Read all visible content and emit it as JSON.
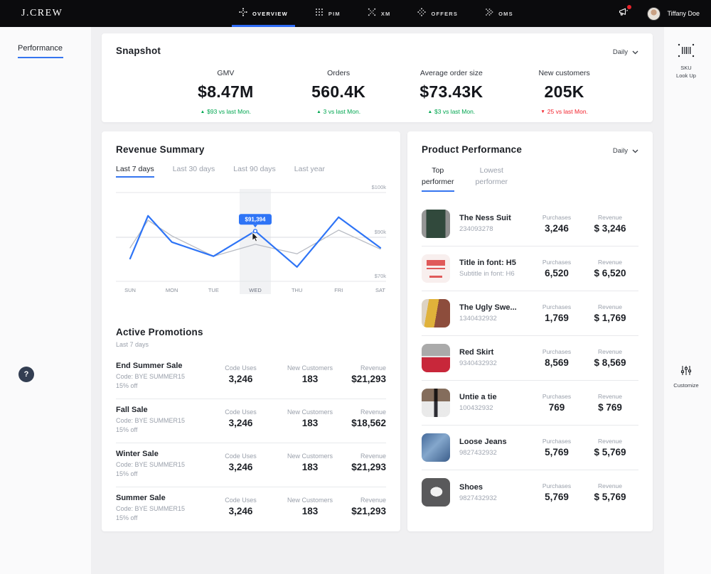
{
  "colors": {
    "accent": "#2e74f6",
    "positive": "#00a650",
    "negative": "#f2242e",
    "nav_bg": "#0b0b0d",
    "page_bg": "#f0f0f2",
    "line_previous": "#b9bcc4"
  },
  "icons": {
    "trend_up": "▲",
    "trend_down": "▼",
    "help": "?"
  },
  "nav": {
    "logo": "J.CREW",
    "items": [
      {
        "label": "OVERVIEW",
        "icon": "overview-icon",
        "active": true
      },
      {
        "label": "PIM",
        "icon": "grid-icon",
        "active": false
      },
      {
        "label": "XM",
        "icon": "x-icon",
        "active": false
      },
      {
        "label": "OFFERS",
        "icon": "diamond-icon",
        "active": false
      },
      {
        "label": "OMS",
        "icon": "chevrons-icon",
        "active": false
      }
    ],
    "user_name": "Tiffany Doe"
  },
  "left_rail": {
    "active_item": "Performance"
  },
  "right_rail": {
    "sku_lookup": {
      "line1": "SKU",
      "line2": "Look Up"
    },
    "customize": {
      "label": "Customize"
    }
  },
  "snapshot": {
    "title": "Snapshot",
    "period_selector": "Daily",
    "metrics": [
      {
        "label": "GMV",
        "value": "$8.47M",
        "delta": "$93 vs last Mon.",
        "direction": "up"
      },
      {
        "label": "Orders",
        "value": "560.4K",
        "delta": "3 vs last Mon.",
        "direction": "up"
      },
      {
        "label": "Average order size",
        "value": "$73.43K",
        "delta": "$3 vs last Mon.",
        "direction": "up"
      },
      {
        "label": "New customers",
        "value": "205K",
        "delta": "25 vs last Mon.",
        "direction": "down"
      }
    ]
  },
  "revenue_summary": {
    "title": "Revenue Summary",
    "tabs": [
      {
        "label": "Last 7 days",
        "active": true
      },
      {
        "label": "Last 30 days",
        "active": false
      },
      {
        "label": "Last 90 days",
        "active": false
      },
      {
        "label": "Last year",
        "active": false
      }
    ]
  },
  "chart_data": {
    "type": "line",
    "title": "Revenue Summary - Last 7 days",
    "x_labels": [
      "SUN",
      "MON",
      "TUE",
      "WED",
      "THU",
      "FRI",
      "SAT"
    ],
    "y_gridlines": [
      {
        "label": "$100k",
        "value": 100000
      },
      {
        "label": "$90k",
        "value": 90000
      },
      {
        "label": "$70k",
        "value": 70000
      }
    ],
    "ylim": [
      70000,
      100000
    ],
    "grid": true,
    "legend": "none",
    "series": [
      {
        "name": "current period",
        "color": "#2e74f6",
        "stroke_width": 2.2,
        "x": [
          0,
          0.43,
          1,
          2,
          3,
          4,
          5,
          6
        ],
        "values": [
          80300,
          94800,
          87800,
          81400,
          91394,
          76500,
          94500,
          85200
        ]
      },
      {
        "name": "previous period",
        "color": "#b9bcc4",
        "stroke_width": 1.3,
        "x": [
          0,
          0.43,
          1,
          2,
          3,
          4,
          5,
          6
        ],
        "values": [
          85200,
          93800,
          90300,
          81400,
          86800,
          82500,
          91600,
          84600
        ]
      }
    ],
    "highlight": {
      "x_label": "WED",
      "tooltip": "$91,394",
      "tooltip_value": 91394
    }
  },
  "promotions": {
    "title": "Active Promotions",
    "subtitle": "Last 7 days",
    "col_headers": {
      "uses": "Code Uses",
      "customers": "New Customers",
      "revenue": "Revenue"
    },
    "rows": [
      {
        "name": "End Summer Sale",
        "code": "Code: BYE SUMMER15",
        "discount": "15% off",
        "uses": "3,246",
        "customers": "183",
        "revenue": "$21,293"
      },
      {
        "name": "Fall Sale",
        "code": "Code: BYE SUMMER15",
        "discount": "15% off",
        "uses": "3,246",
        "customers": "183",
        "revenue": "$18,562"
      },
      {
        "name": "Winter Sale",
        "code": "Code: BYE SUMMER15",
        "discount": "15% off",
        "uses": "3,246",
        "customers": "183",
        "revenue": "$21,293"
      },
      {
        "name": "Summer Sale",
        "code": "Code: BYE SUMMER15",
        "discount": "15% off",
        "uses": "3,246",
        "customers": "183",
        "revenue": "$21,293"
      }
    ]
  },
  "product_performance": {
    "title": "Product Performance",
    "period_selector": "Daily",
    "tabs": [
      {
        "line1": "Top",
        "line2": "performer",
        "active": true
      },
      {
        "line1": "Lowest",
        "line2": "performer",
        "active": false
      }
    ],
    "col_headers": {
      "purchases": "Purchases",
      "revenue": "Revenue"
    },
    "rows": [
      {
        "name": "The Ness Suit",
        "sku": "234093278",
        "purchases": "3,246",
        "revenue": "$ 3,246",
        "thumb": "suit"
      },
      {
        "name": "Title in font: H5",
        "sku": "Subtitle in font: H6",
        "purchases": "6,520",
        "revenue": "$ 6,520",
        "thumb": "placeholder"
      },
      {
        "name": "The Ugly Swe...",
        "sku": "1340432932",
        "purchases": "1,769",
        "revenue": "$ 1,769",
        "thumb": "sweater"
      },
      {
        "name": "Red Skirt",
        "sku": "9340432932",
        "purchases": "8,569",
        "revenue": "$ 8,569",
        "thumb": "skirt"
      },
      {
        "name": "Untie a tie",
        "sku": "100432932",
        "purchases": "769",
        "revenue": "$ 769",
        "thumb": "tie"
      },
      {
        "name": "Loose Jeans",
        "sku": "9827432932",
        "purchases": "5,769",
        "revenue": "$ 5,769",
        "thumb": "jeans"
      },
      {
        "name": "Shoes",
        "sku": "9827432932",
        "purchases": "5,769",
        "revenue": "$ 5,769",
        "thumb": "shoes"
      }
    ]
  }
}
